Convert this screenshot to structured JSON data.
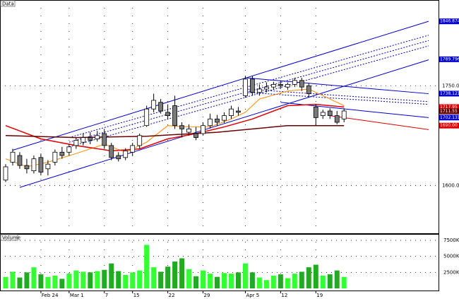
{
  "chart_data": {
    "type": "candlestick",
    "title": "Data",
    "volume_title": "Volume",
    "categories": [
      null,
      null,
      null,
      null,
      null,
      "Feb 24",
      null,
      null,
      null,
      "Mar 1",
      null,
      null,
      null,
      null,
      "7",
      null,
      null,
      null,
      "15",
      null,
      null,
      null,
      null,
      "22",
      null,
      null,
      null,
      null,
      "29",
      null,
      null,
      null,
      null,
      null,
      "Apr 5",
      null,
      null,
      null,
      null,
      "12",
      null,
      null,
      null,
      null,
      "19",
      null,
      null,
      null,
      null
    ],
    "xlim": [
      -0.8,
      61.4
    ],
    "ylim": [
      1528,
      1879
    ],
    "yticks": [
      {
        "value": 1600,
        "label": "1600.00"
      },
      {
        "value": 1750,
        "label": "1750.00"
      }
    ],
    "grid": true,
    "up_color": "#ffffff",
    "down_color": "#7a7a7a",
    "candles": [
      {
        "o": 1608,
        "h": 1632,
        "l": 1605,
        "c": 1628
      },
      {
        "o": 1635,
        "h": 1655,
        "l": 1630,
        "c": 1650
      },
      {
        "o": 1645,
        "h": 1650,
        "l": 1625,
        "c": 1630
      },
      {
        "o": 1630,
        "h": 1640,
        "l": 1618,
        "c": 1625
      },
      {
        "o": 1622,
        "h": 1645,
        "l": 1618,
        "c": 1640
      },
      {
        "o": 1642,
        "h": 1648,
        "l": 1615,
        "c": 1620
      },
      {
        "o": 1625,
        "h": 1638,
        "l": 1615,
        "c": 1632
      },
      {
        "o": 1635,
        "h": 1654,
        "l": 1630,
        "c": 1650
      },
      {
        "o": 1650,
        "h": 1658,
        "l": 1640,
        "c": 1645
      },
      {
        "o": 1650,
        "h": 1662,
        "l": 1645,
        "c": 1658
      },
      {
        "o": 1660,
        "h": 1672,
        "l": 1655,
        "c": 1668
      },
      {
        "o": 1665,
        "h": 1678,
        "l": 1660,
        "c": 1672
      },
      {
        "o": 1672,
        "h": 1680,
        "l": 1662,
        "c": 1668
      },
      {
        "o": 1670,
        "h": 1682,
        "l": 1666,
        "c": 1675
      },
      {
        "o": 1678,
        "h": 1685,
        "l": 1655,
        "c": 1660
      },
      {
        "o": 1660,
        "h": 1664,
        "l": 1638,
        "c": 1642
      },
      {
        "o": 1645,
        "h": 1650,
        "l": 1636,
        "c": 1640
      },
      {
        "o": 1642,
        "h": 1656,
        "l": 1638,
        "c": 1652
      },
      {
        "o": 1650,
        "h": 1664,
        "l": 1645,
        "c": 1660
      },
      {
        "o": 1660,
        "h": 1678,
        "l": 1655,
        "c": 1675
      },
      {
        "o": 1690,
        "h": 1720,
        "l": 1688,
        "c": 1715
      },
      {
        "o": 1715,
        "h": 1738,
        "l": 1710,
        "c": 1728
      },
      {
        "o": 1725,
        "h": 1730,
        "l": 1708,
        "c": 1712
      },
      {
        "o": 1710,
        "h": 1722,
        "l": 1700,
        "c": 1705
      },
      {
        "o": 1720,
        "h": 1735,
        "l": 1685,
        "c": 1690
      },
      {
        "o": 1690,
        "h": 1695,
        "l": 1672,
        "c": 1685
      },
      {
        "o": 1680,
        "h": 1692,
        "l": 1675,
        "c": 1685
      },
      {
        "o": 1678,
        "h": 1688,
        "l": 1668,
        "c": 1672
      },
      {
        "o": 1678,
        "h": 1695,
        "l": 1675,
        "c": 1690
      },
      {
        "o": 1690,
        "h": 1708,
        "l": 1686,
        "c": 1700
      },
      {
        "o": 1700,
        "h": 1706,
        "l": 1690,
        "c": 1695
      },
      {
        "o": 1698,
        "h": 1710,
        "l": 1694,
        "c": 1705
      },
      {
        "o": 1705,
        "h": 1720,
        "l": 1700,
        "c": 1715
      },
      {
        "o": 1712,
        "h": 1718,
        "l": 1705,
        "c": 1710
      },
      {
        "o": 1735,
        "h": 1765,
        "l": 1732,
        "c": 1760
      },
      {
        "o": 1760,
        "h": 1765,
        "l": 1735,
        "c": 1740
      },
      {
        "o": 1740,
        "h": 1752,
        "l": 1735,
        "c": 1745
      },
      {
        "o": 1745,
        "h": 1755,
        "l": 1740,
        "c": 1748
      },
      {
        "o": 1748,
        "h": 1756,
        "l": 1744,
        "c": 1752
      },
      {
        "o": 1752,
        "h": 1758,
        "l": 1745,
        "c": 1750
      },
      {
        "o": 1748,
        "h": 1755,
        "l": 1744,
        "c": 1752
      },
      {
        "o": 1752,
        "h": 1762,
        "l": 1748,
        "c": 1758
      },
      {
        "o": 1758,
        "h": 1762,
        "l": 1742,
        "c": 1748
      },
      {
        "o": 1750,
        "h": 1754,
        "l": 1732,
        "c": 1738
      },
      {
        "o": 1718,
        "h": 1722,
        "l": 1690,
        "c": 1702
      },
      {
        "o": 1705,
        "h": 1714,
        "l": 1700,
        "c": 1710
      },
      {
        "o": 1712,
        "h": 1716,
        "l": 1700,
        "c": 1705
      },
      {
        "o": 1705,
        "h": 1712,
        "l": 1692,
        "c": 1695
      },
      {
        "o": 1700,
        "h": 1716,
        "l": 1695,
        "c": 1712
      }
    ],
    "volume": [
      1800,
      2600,
      1700,
      2500,
      3300,
      2200,
      1800,
      2000,
      1500,
      2300,
      2800,
      2600,
      2500,
      2700,
      2900,
      3900,
      2700,
      2100,
      2500,
      2800,
      6800,
      3300,
      2600,
      3400,
      4200,
      4700,
      3000,
      1900,
      2800,
      2300,
      1800,
      2400,
      2300,
      2500,
      3900,
      2500,
      1700,
      1300,
      2000,
      2200,
      1600,
      2300,
      2600,
      3300,
      3700,
      2000,
      2200,
      2800,
      1800
    ],
    "volume_up_color": "#33ff33",
    "volume_down_color": "#22aa22",
    "volume_ylim": [
      0,
      8500
    ],
    "volume_yticks": [
      {
        "value": 2500,
        "label": "2500K"
      },
      {
        "value": 5000,
        "label": "5000K"
      },
      {
        "value": 7500,
        "label": "7500K"
      }
    ],
    "lines": [
      {
        "color": "#0000cc",
        "dash": false,
        "width": 1,
        "points": [
          [
            1,
            1653
          ],
          [
            60,
            1847
          ]
        ]
      },
      {
        "color": "#0000cc",
        "dash": false,
        "width": 1,
        "points": [
          [
            2,
            1597
          ],
          [
            60,
            1789
          ]
        ]
      },
      {
        "color": "#0000aa",
        "dash": true,
        "width": 1,
        "points": [
          [
            9,
            1672
          ],
          [
            60,
            1826
          ]
        ]
      },
      {
        "color": "#0000aa",
        "dash": true,
        "width": 1,
        "points": [
          [
            9,
            1665
          ],
          [
            60,
            1818
          ]
        ]
      },
      {
        "color": "#0000aa",
        "dash": true,
        "width": 1,
        "points": [
          [
            9,
            1658
          ],
          [
            60,
            1810
          ]
        ]
      },
      {
        "color": "#0000cc",
        "dash": false,
        "width": 1,
        "points": [
          [
            34,
            1762
          ],
          [
            60,
            1738
          ]
        ]
      },
      {
        "color": "#0000aa",
        "dash": true,
        "width": 1,
        "points": [
          [
            34,
            1745
          ],
          [
            60,
            1726
          ]
        ]
      },
      {
        "color": "#0000aa",
        "dash": true,
        "width": 1,
        "points": [
          [
            34,
            1740
          ],
          [
            60,
            1722
          ]
        ]
      },
      {
        "color": "#0000cc",
        "dash": false,
        "width": 1,
        "points": [
          [
            39,
            1725
          ],
          [
            60,
            1702
          ]
        ]
      },
      {
        "color": "#dd0000",
        "dash": false,
        "width": 1,
        "points": [
          [
            46,
            1705
          ],
          [
            60,
            1684
          ]
        ]
      },
      {
        "color": "#ff8800",
        "dash": false,
        "width": 1,
        "points": [
          [
            0,
            1640
          ],
          [
            3,
            1628
          ],
          [
            6,
            1635
          ],
          [
            10,
            1648
          ],
          [
            14,
            1662
          ],
          [
            17,
            1650
          ],
          [
            20,
            1665
          ],
          [
            23,
            1690
          ],
          [
            26,
            1688
          ],
          [
            29,
            1688
          ],
          [
            32,
            1700
          ],
          [
            34,
            1710
          ],
          [
            36,
            1730
          ],
          [
            40,
            1742
          ],
          [
            43,
            1745
          ],
          [
            46,
            1730
          ],
          [
            48,
            1720
          ]
        ]
      },
      {
        "color": "#dd0000",
        "dash": false,
        "width": 1.5,
        "points": [
          [
            0,
            1690
          ],
          [
            5,
            1670
          ],
          [
            10,
            1660
          ],
          [
            15,
            1652
          ],
          [
            19,
            1655
          ],
          [
            23,
            1670
          ],
          [
            27,
            1678
          ],
          [
            31,
            1688
          ],
          [
            35,
            1700
          ],
          [
            40,
            1720
          ],
          [
            44,
            1722
          ],
          [
            48,
            1718
          ]
        ]
      },
      {
        "color": "#660000",
        "dash": false,
        "width": 1.5,
        "points": [
          [
            0,
            1675
          ],
          [
            10,
            1672
          ],
          [
            20,
            1674
          ],
          [
            30,
            1680
          ],
          [
            40,
            1690
          ],
          [
            48,
            1690
          ]
        ]
      }
    ],
    "right_labels": [
      {
        "value": 1846.87,
        "label": "1846.8749",
        "color": "#0000cc"
      },
      {
        "value": 1789.8,
        "label": "1789.7966",
        "color": "#0000cc"
      },
      {
        "value": 1738.12,
        "label": "1738.1212",
        "color": "#0000cc"
      },
      {
        "value": 1717.95,
        "label": "1717.95",
        "color": "#dd0000"
      },
      {
        "value": 1711.55,
        "label": "1711.55",
        "color": "#660000"
      },
      {
        "value": 1702.13,
        "label": "1702.1312",
        "color": "#0000cc"
      },
      {
        "value": 1690.0,
        "label": "1690.00",
        "color": "#dd0000"
      }
    ]
  }
}
